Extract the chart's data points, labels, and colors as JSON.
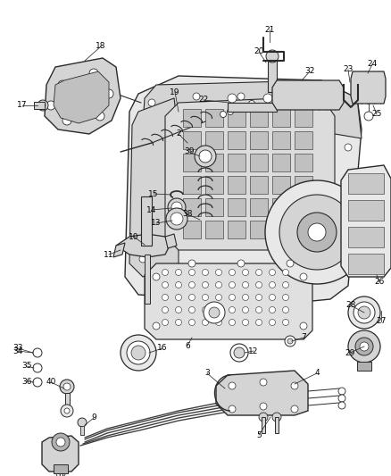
{
  "bg_color": "#ffffff",
  "line_color": "#2a2a2a",
  "text_color": "#000000",
  "fig_width": 4.38,
  "fig_height": 5.33,
  "dpi": 100,
  "gray_fill": "#c8c8c8",
  "light_fill": "#e8e8e8",
  "mid_fill": "#d4d4d4",
  "dark_fill": "#b0b0b0"
}
